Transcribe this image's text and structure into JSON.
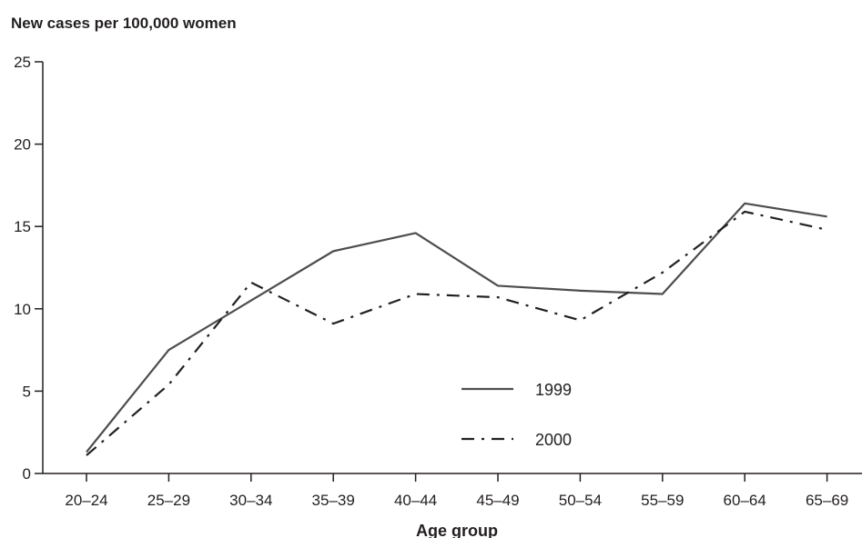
{
  "chart_data": {
    "type": "line",
    "ylabel": "New cases per 100,000 women",
    "xlabel": "Age group",
    "categories": [
      "20–24",
      "25–29",
      "30–34",
      "35–39",
      "40–44",
      "45–49",
      "50–54",
      "55–59",
      "60–64",
      "65–69"
    ],
    "y_ticks": [
      "0",
      "5",
      "10",
      "15",
      "20",
      "25"
    ],
    "ylim": [
      0,
      25
    ],
    "grid": false,
    "legend_position": "center-right",
    "series": [
      {
        "name": "1999",
        "style": "solid",
        "color": "#4d4d4f",
        "values": [
          1.3,
          7.5,
          10.5,
          13.5,
          14.6,
          11.4,
          11.1,
          10.9,
          16.4,
          15.6
        ]
      },
      {
        "name": "2000",
        "style": "dash-dot",
        "color": "#231f20",
        "values": [
          1.1,
          5.4,
          11.6,
          9.1,
          10.9,
          10.7,
          9.3,
          12.2,
          15.9,
          14.8
        ]
      }
    ]
  }
}
